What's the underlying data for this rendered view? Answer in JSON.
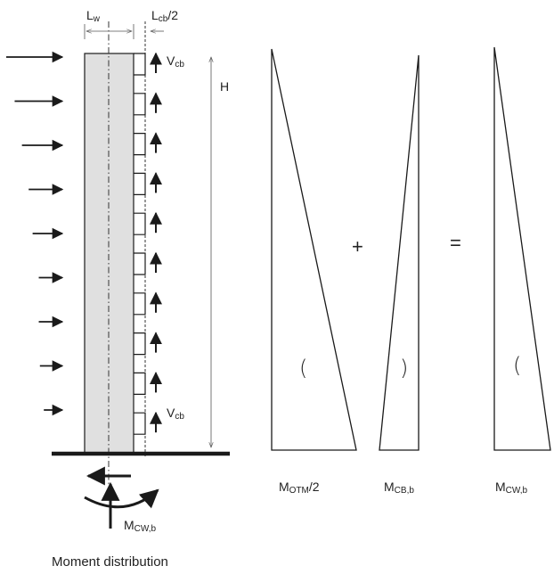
{
  "labels": {
    "lw": {
      "main": "L",
      "sub": "w",
      "suffix": ""
    },
    "lcb": {
      "main": "L",
      "sub": "cb",
      "suffix": "/2"
    },
    "vcb_top": {
      "main": "V",
      "sub": "cb",
      "suffix": ""
    },
    "vcb_bottom": {
      "main": "V",
      "sub": "cb",
      "suffix": ""
    },
    "h": "H",
    "mcw_wall": {
      "main": "M",
      "sub": "CW,b",
      "suffix": ""
    },
    "caption": "Moment distribution",
    "motm": {
      "main": "M",
      "sub": "OTM",
      "suffix": "/2"
    },
    "mcb": {
      "main": "M",
      "sub": "CB,b",
      "suffix": ""
    },
    "mcw": {
      "main": "M",
      "sub": "CW,b",
      "suffix": ""
    },
    "plus": "+",
    "equals": "=",
    "paren_open": "(",
    "paren_close": ")"
  },
  "wall": {
    "fill_color": "#e0e0e0",
    "coupling_beam_count": 10,
    "lateral_load_count": 9,
    "lateral_load_lengths_relative": [
      1.0,
      0.85,
      0.72,
      0.6,
      0.53,
      0.42,
      0.42,
      0.4,
      0.33
    ]
  },
  "colors": {
    "line": "#1a1a1a",
    "thin": "#555555"
  }
}
